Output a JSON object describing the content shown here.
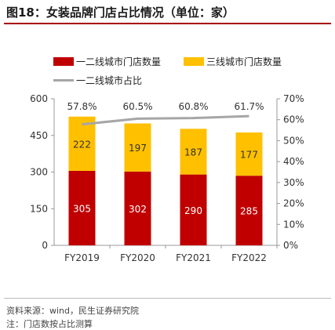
{
  "title": "图18：女装品牌门店占比情况（单位：家）",
  "footer": {
    "source": "资料来源：wind，民生证券研究院",
    "note": "注：门店数按占比测算"
  },
  "colors": {
    "tier12": "#c00000",
    "tier3": "#ffc000",
    "ratio": "#a6a6a6",
    "title_rule": "#a60000"
  },
  "chart_data": {
    "type": "bar",
    "stacked": true,
    "categories": [
      "FY2019",
      "FY2020",
      "FY2021",
      "FY2022"
    ],
    "series": [
      {
        "name": "一二线城市门店数量",
        "type": "bar",
        "axis": "left",
        "values": [
          305,
          302,
          290,
          285
        ],
        "labels": [
          "305",
          "302",
          "290",
          "285"
        ]
      },
      {
        "name": "三线城市门店数量",
        "type": "bar",
        "axis": "left",
        "values": [
          222,
          197,
          187,
          177
        ],
        "labels": [
          "222",
          "197",
          "187",
          "177"
        ]
      },
      {
        "name": "一二线城市占比",
        "type": "line",
        "axis": "right",
        "values": [
          57.8,
          60.5,
          60.8,
          61.7
        ],
        "labels": [
          "57.8%",
          "60.5%",
          "60.8%",
          "61.7%"
        ]
      }
    ],
    "ylim": [
      0,
      600
    ],
    "yticks": [
      "0",
      "150",
      "300",
      "450",
      "600"
    ],
    "y2lim": [
      0,
      70
    ],
    "y2ticks": [
      "0%",
      "10%",
      "20%",
      "30%",
      "40%",
      "50%",
      "60%",
      "70%"
    ],
    "legend_position": "top",
    "grid": false
  }
}
